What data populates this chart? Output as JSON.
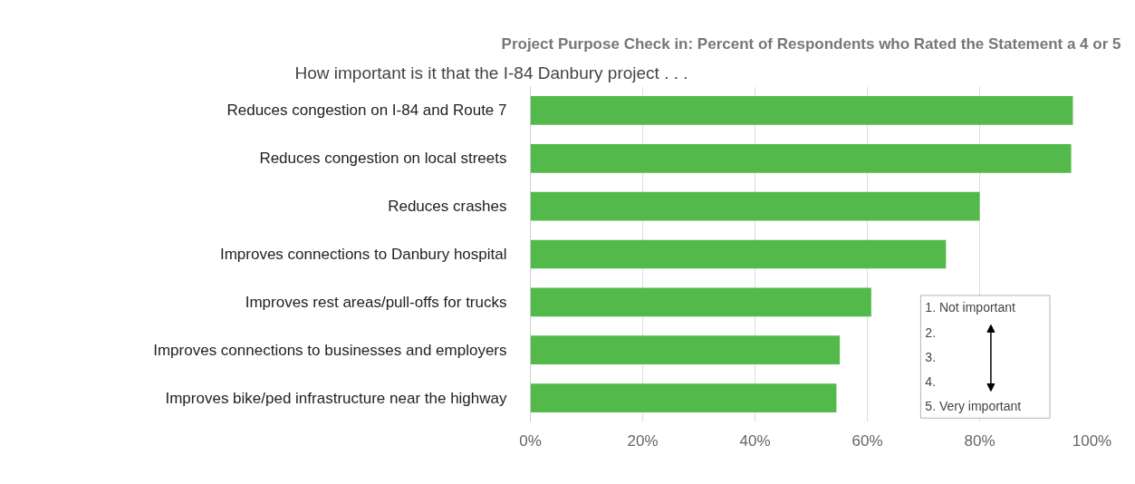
{
  "chart_data": {
    "type": "bar",
    "orientation": "horizontal",
    "title": "Project Purpose Check in: Percent of Respondents who Rated the Statement a 4 or 5",
    "subtitle": "How important is it that the I-84 Danbury project . . .",
    "categories": [
      "Reduces congestion on I-84 and Route 7",
      "Reduces congestion on local streets",
      "Reduces crashes",
      "Improves connections to Danbury hospital",
      "Improves rest areas/pull-offs for trucks",
      "Improves connections to businesses and employers",
      "Improves bike/ped infrastructure near the highway"
    ],
    "values": [
      96.6,
      96.3,
      80.0,
      74.0,
      60.7,
      55.1,
      54.5
    ],
    "color": "#53b94b",
    "xlim": [
      0,
      100
    ],
    "xticks": [
      {
        "value": 0,
        "label": "0%"
      },
      {
        "value": 20,
        "label": "20%"
      },
      {
        "value": 40,
        "label": "40%"
      },
      {
        "value": 60,
        "label": "60%"
      },
      {
        "value": 80,
        "label": "80%"
      },
      {
        "value": 100,
        "label": "100%"
      }
    ],
    "grid": "x",
    "annotations": [
      "1.  Not important",
      "2.",
      "3.",
      "4.",
      "5.  Very important"
    ]
  }
}
